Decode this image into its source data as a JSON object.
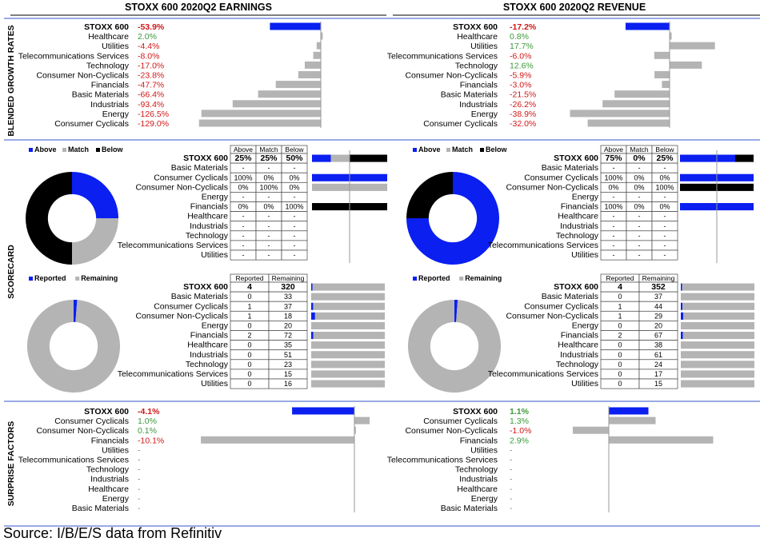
{
  "colors": {
    "blue": "#0a1ff0",
    "gray": "#b4b4b4",
    "black": "#000000",
    "red": "#d01818",
    "green": "#3a9a3a",
    "rule": "#3355cc"
  },
  "titles": {
    "earnings": "STOXX 600 2020Q2 EARNINGS",
    "revenue": "STOXX 600 2020Q2 REVENUE"
  },
  "side_labels": {
    "growth": "BLENDED GROWTH RATES",
    "scorecard": "SCORECARD",
    "surprise": "SURPRISE FACTORS"
  },
  "source": "Source: I/B/E/S data from Refinitiv",
  "chart_data": [
    {
      "type": "bar",
      "id": "growth-earnings",
      "title": "STOXX 600 2020Q2 EARNINGS",
      "categories": [
        "STOXX 600",
        "Healthcare",
        "Utilities",
        "Telecommunications Services",
        "Technology",
        "Consumer Non-Cyclicals",
        "Financials",
        "Basic Materials",
        "Industrials",
        "Energy",
        "Consumer Cyclicals"
      ],
      "values": [
        -53.9,
        2.0,
        -4.4,
        -8.0,
        -17.0,
        -23.8,
        -47.7,
        -66.4,
        -93.4,
        -126.5,
        -129.0
      ],
      "labels": [
        "-53.9%",
        "2.0%",
        "-4.4%",
        "-8.0%",
        "-17.0%",
        "-23.8%",
        "-47.7%",
        "-66.4%",
        "-93.4%",
        "-126.5%",
        "-129.0%"
      ]
    },
    {
      "type": "bar",
      "id": "growth-revenue",
      "title": "STOXX 600 2020Q2 REVENUE",
      "categories": [
        "STOXX 600",
        "Healthcare",
        "Utilities",
        "Telecommunications Services",
        "Technology",
        "Consumer Non-Cyclicals",
        "Financials",
        "Basic Materials",
        "Industrials",
        "Energy",
        "Consumer Cyclicals"
      ],
      "values": [
        -17.2,
        0.8,
        17.7,
        -6.0,
        12.6,
        -5.9,
        -3.0,
        -21.5,
        -26.2,
        -38.9,
        -32.0
      ],
      "labels": [
        "-17.2%",
        "0.8%",
        "17.7%",
        "-6.0%",
        "12.6%",
        "-5.9%",
        "-3.0%",
        "-21.5%",
        "-26.2%",
        "-38.9%",
        "-32.0%"
      ]
    },
    {
      "type": "pie",
      "id": "scorecard-donut-earnings",
      "legend": [
        "Above",
        "Match",
        "Below"
      ],
      "values": [
        25,
        25,
        50
      ]
    },
    {
      "type": "pie",
      "id": "scorecard-donut-revenue",
      "legend": [
        "Above",
        "Match",
        "Below"
      ],
      "values": [
        75,
        0,
        25
      ]
    },
    {
      "type": "table",
      "id": "scorecard-table-earnings",
      "columns": [
        "Above",
        "Match",
        "Below"
      ],
      "rows": [
        {
          "name": "STOXX 600",
          "cells": [
            "25%",
            "25%",
            "50%"
          ],
          "bar": [
            25,
            25,
            50
          ]
        },
        {
          "name": "Basic Materials",
          "cells": [
            "-",
            "-",
            "-"
          ],
          "bar": [
            0,
            0,
            0
          ]
        },
        {
          "name": "Consumer Cyclicals",
          "cells": [
            "100%",
            "0%",
            "0%"
          ],
          "bar": [
            100,
            0,
            0
          ]
        },
        {
          "name": "Consumer Non-Cyclicals",
          "cells": [
            "0%",
            "100%",
            "0%"
          ],
          "bar": [
            0,
            100,
            0
          ]
        },
        {
          "name": "Energy",
          "cells": [
            "-",
            "-",
            "-"
          ],
          "bar": [
            0,
            0,
            0
          ]
        },
        {
          "name": "Financials",
          "cells": [
            "0%",
            "0%",
            "100%"
          ],
          "bar": [
            0,
            0,
            100
          ]
        },
        {
          "name": "Healthcare",
          "cells": [
            "-",
            "-",
            "-"
          ],
          "bar": [
            0,
            0,
            0
          ]
        },
        {
          "name": "Industrials",
          "cells": [
            "-",
            "-",
            "-"
          ],
          "bar": [
            0,
            0,
            0
          ]
        },
        {
          "name": "Technology",
          "cells": [
            "-",
            "-",
            "-"
          ],
          "bar": [
            0,
            0,
            0
          ]
        },
        {
          "name": "Telecommunications Services",
          "cells": [
            "-",
            "-",
            "-"
          ],
          "bar": [
            0,
            0,
            0
          ]
        },
        {
          "name": "Utilities",
          "cells": [
            "-",
            "-",
            "-"
          ],
          "bar": [
            0,
            0,
            0
          ]
        }
      ]
    },
    {
      "type": "table",
      "id": "scorecard-table-revenue",
      "columns": [
        "Above",
        "Match",
        "Below"
      ],
      "rows": [
        {
          "name": "STOXX 600",
          "cells": [
            "75%",
            "0%",
            "25%"
          ],
          "bar": [
            75,
            0,
            25
          ]
        },
        {
          "name": "Basic Materials",
          "cells": [
            "-",
            "-",
            "-"
          ],
          "bar": [
            0,
            0,
            0
          ]
        },
        {
          "name": "Consumer Cyclicals",
          "cells": [
            "100%",
            "0%",
            "0%"
          ],
          "bar": [
            100,
            0,
            0
          ]
        },
        {
          "name": "Consumer Non-Cyclicals",
          "cells": [
            "0%",
            "0%",
            "100%"
          ],
          "bar": [
            0,
            0,
            100
          ]
        },
        {
          "name": "Energy",
          "cells": [
            "-",
            "-",
            "-"
          ],
          "bar": [
            0,
            0,
            0
          ]
        },
        {
          "name": "Financials",
          "cells": [
            "100%",
            "0%",
            "0%"
          ],
          "bar": [
            100,
            0,
            0
          ]
        },
        {
          "name": "Healthcare",
          "cells": [
            "-",
            "-",
            "-"
          ],
          "bar": [
            0,
            0,
            0
          ]
        },
        {
          "name": "Industrials",
          "cells": [
            "-",
            "-",
            "-"
          ],
          "bar": [
            0,
            0,
            0
          ]
        },
        {
          "name": "Technology",
          "cells": [
            "-",
            "-",
            "-"
          ],
          "bar": [
            0,
            0,
            0
          ]
        },
        {
          "name": "Telecommunications Services",
          "cells": [
            "-",
            "-",
            "-"
          ],
          "bar": [
            0,
            0,
            0
          ]
        },
        {
          "name": "Utilities",
          "cells": [
            "-",
            "-",
            "-"
          ],
          "bar": [
            0,
            0,
            0
          ]
        }
      ]
    },
    {
      "type": "pie",
      "id": "reported-donut-earnings",
      "legend": [
        "Reported",
        "Remaining"
      ],
      "values": [
        4,
        320
      ]
    },
    {
      "type": "pie",
      "id": "reported-donut-revenue",
      "legend": [
        "Reported",
        "Remaining"
      ],
      "values": [
        4,
        352
      ]
    },
    {
      "type": "table",
      "id": "reported-table-earnings",
      "columns": [
        "Reported",
        "Remaining"
      ],
      "rows": [
        {
          "name": "STOXX 600",
          "cells": [
            "4",
            "320"
          ]
        },
        {
          "name": "Basic Materials",
          "cells": [
            "0",
            "33"
          ]
        },
        {
          "name": "Consumer Cyclicals",
          "cells": [
            "1",
            "37"
          ]
        },
        {
          "name": "Consumer Non-Cyclicals",
          "cells": [
            "1",
            "18"
          ]
        },
        {
          "name": "Energy",
          "cells": [
            "0",
            "20"
          ]
        },
        {
          "name": "Financials",
          "cells": [
            "2",
            "72"
          ]
        },
        {
          "name": "Healthcare",
          "cells": [
            "0",
            "35"
          ]
        },
        {
          "name": "Industrials",
          "cells": [
            "0",
            "51"
          ]
        },
        {
          "name": "Technology",
          "cells": [
            "0",
            "23"
          ]
        },
        {
          "name": "Telecommunications Services",
          "cells": [
            "0",
            "15"
          ]
        },
        {
          "name": "Utilities",
          "cells": [
            "0",
            "16"
          ]
        }
      ]
    },
    {
      "type": "table",
      "id": "reported-table-revenue",
      "columns": [
        "Reported",
        "Remaining"
      ],
      "rows": [
        {
          "name": "STOXX 600",
          "cells": [
            "4",
            "352"
          ]
        },
        {
          "name": "Basic Materials",
          "cells": [
            "0",
            "37"
          ]
        },
        {
          "name": "Consumer Cyclicals",
          "cells": [
            "1",
            "44"
          ]
        },
        {
          "name": "Consumer Non-Cyclicals",
          "cells": [
            "1",
            "29"
          ]
        },
        {
          "name": "Energy",
          "cells": [
            "0",
            "20"
          ]
        },
        {
          "name": "Financials",
          "cells": [
            "2",
            "67"
          ]
        },
        {
          "name": "Healthcare",
          "cells": [
            "0",
            "38"
          ]
        },
        {
          "name": "Industrials",
          "cells": [
            "0",
            "61"
          ]
        },
        {
          "name": "Technology",
          "cells": [
            "0",
            "24"
          ]
        },
        {
          "name": "Telecommunications Services",
          "cells": [
            "0",
            "17"
          ]
        },
        {
          "name": "Utilities",
          "cells": [
            "0",
            "15"
          ]
        }
      ]
    },
    {
      "type": "bar",
      "id": "surprise-earnings",
      "categories": [
        "STOXX 600",
        "Consumer Cyclicals",
        "Consumer Non-Cyclicals",
        "Financials",
        "Utilities",
        "Telecommunications Services",
        "Technology",
        "Industrials",
        "Healthcare",
        "Energy",
        "Basic Materials"
      ],
      "values": [
        -4.1,
        1.0,
        0.1,
        -10.1,
        null,
        null,
        null,
        null,
        null,
        null,
        null
      ],
      "labels": [
        "-4.1%",
        "1.0%",
        "0.1%",
        "-10.1%",
        "-",
        "-",
        "-",
        "-",
        "-",
        "-",
        "-"
      ]
    },
    {
      "type": "bar",
      "id": "surprise-revenue",
      "categories": [
        "STOXX 600",
        "Consumer Cyclicals",
        "Consumer Non-Cyclicals",
        "Financials",
        "Utilities",
        "Telecommunications Services",
        "Technology",
        "Industrials",
        "Healthcare",
        "Energy",
        "Basic Materials"
      ],
      "values": [
        1.1,
        1.3,
        -1.0,
        2.9,
        null,
        null,
        null,
        null,
        null,
        null,
        null
      ],
      "labels": [
        "1.1%",
        "1.3%",
        "-1.0%",
        "2.9%",
        "-",
        "-",
        "-",
        "-",
        "-",
        "-",
        "-"
      ]
    }
  ]
}
